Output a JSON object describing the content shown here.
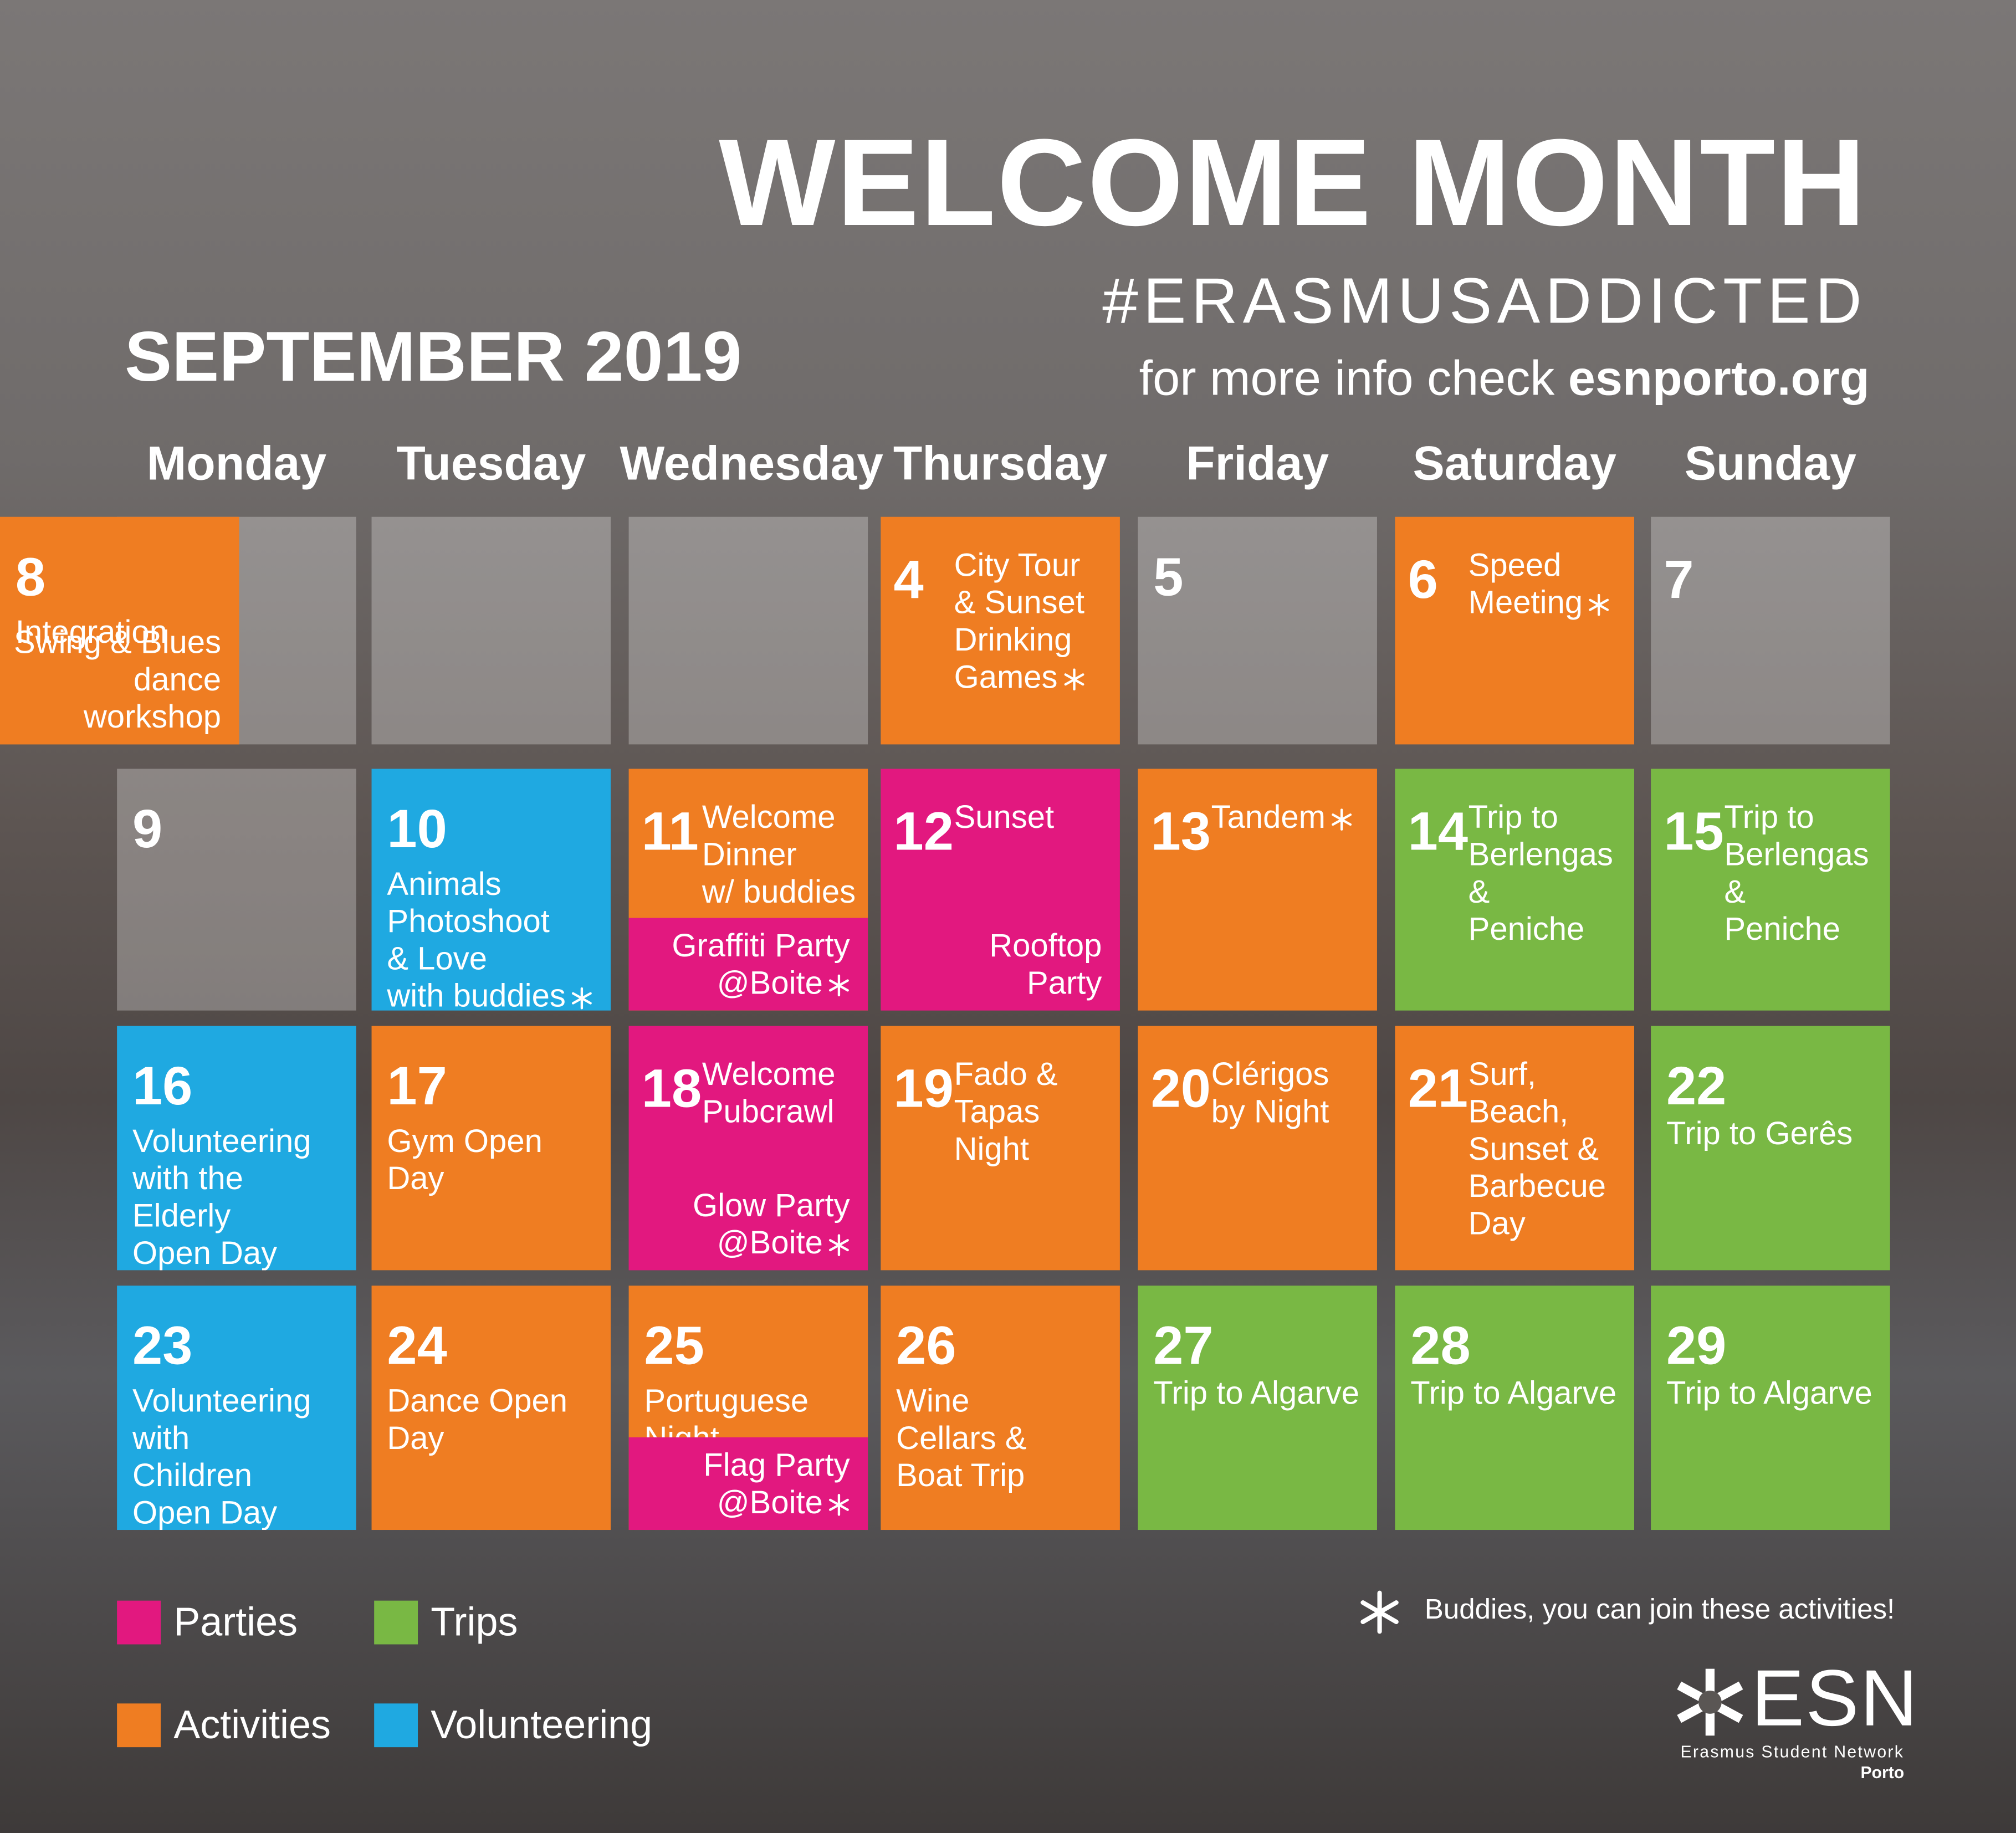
{
  "header": {
    "title": "WELCOME MONTH",
    "hashtag": "#ERASMUSADDICTED",
    "info": "for more info check ",
    "site": "esnporto.org",
    "month": "SEPTEMBER 2019"
  },
  "weekdays": [
    "Monday",
    "Tuesday",
    "Wednesday",
    "Thursday",
    "Friday",
    "Saturday",
    "Sunday"
  ],
  "weeks": [
    [
      null,
      null,
      null,
      {
        "day": 4,
        "events": [
          {
            "text": "City Tour\n& Sunset\nDrinking\nGames",
            "color": "#ef7d22",
            "buddies": true
          }
        ]
      },
      {
        "day": 5,
        "events": []
      },
      {
        "day": 6,
        "events": [
          {
            "text": "Speed\nMeeting",
            "color": "#ef7d22",
            "buddies": true
          }
        ]
      },
      {
        "day": 7,
        "events": []
      },
      {
        "day": 8,
        "events": [
          {
            "text": "Integration\nPicnic",
            "color": "#ef7d22",
            "buddies": false
          },
          {
            "text": "Swing & Blues\ndance workshop",
            "color": "#ef7d22",
            "buddies": false
          }
        ]
      }
    ],
    [
      {
        "day": 9,
        "events": []
      },
      {
        "day": 10,
        "events": [
          {
            "text": "Animals\nPhotoshoot\n& Love\nwith buddies",
            "color": "#1fa9e1",
            "buddies": true
          }
        ]
      },
      {
        "day": 11,
        "events": [
          {
            "text": "Welcome\nDinner\nw/ buddies",
            "color": "#ef7d22",
            "buddies": true
          },
          {
            "text": "Graffiti Party\n@Boite",
            "color": "#e2187f",
            "buddies": true
          }
        ]
      },
      {
        "day": 12,
        "events": [
          {
            "text": "Sunset",
            "color": "#e2187f",
            "buddies": false
          },
          {
            "text": "Rooftop\nParty",
            "color": "#e2187f",
            "buddies": false
          }
        ]
      },
      {
        "day": 13,
        "events": [
          {
            "text": "Tandem",
            "color": "#ef7d22",
            "buddies": true
          }
        ]
      },
      {
        "day": 14,
        "events": [
          {
            "text": "Trip to\nBerlengas\n&\nPeniche",
            "color": "#79b844",
            "buddies": false
          }
        ]
      },
      {
        "day": 15,
        "events": [
          {
            "text": "Trip to\nBerlengas\n&\nPeniche",
            "color": "#79b844",
            "buddies": false
          }
        ]
      }
    ],
    [
      {
        "day": 16,
        "events": [
          {
            "text": "Volunteering\nwith the\nElderly\nOpen Day",
            "color": "#1fa9e1",
            "buddies": false
          }
        ]
      },
      {
        "day": 17,
        "events": [
          {
            "text": "Gym Open\nDay",
            "color": "#ef7d22",
            "buddies": false
          }
        ]
      },
      {
        "day": 18,
        "events": [
          {
            "text": "Welcome\nPubcrawl",
            "color": "#e2187f",
            "buddies": false
          },
          {
            "text": "Glow Party\n@Boite",
            "color": "#e2187f",
            "buddies": true
          }
        ]
      },
      {
        "day": 19,
        "events": [
          {
            "text": "Fado &\nTapas\nNight",
            "color": "#ef7d22",
            "buddies": false
          }
        ]
      },
      {
        "day": 20,
        "events": [
          {
            "text": "Clérigos\nby Night",
            "color": "#ef7d22",
            "buddies": false
          }
        ]
      },
      {
        "day": 21,
        "events": [
          {
            "text": "Surf,\nBeach,\nSunset &\nBarbecue\nDay",
            "color": "#ef7d22",
            "buddies": false
          }
        ]
      },
      {
        "day": 22,
        "events": [
          {
            "text": "Trip to Gerês",
            "color": "#79b844",
            "buddies": false
          }
        ]
      }
    ],
    [
      {
        "day": 23,
        "events": [
          {
            "text": "Volunteering\nwith\nChildren\nOpen Day",
            "color": "#1fa9e1",
            "buddies": false
          }
        ]
      },
      {
        "day": 24,
        "events": [
          {
            "text": "Dance Open\nDay",
            "color": "#ef7d22",
            "buddies": false
          }
        ]
      },
      {
        "day": 25,
        "events": [
          {
            "text": "Portuguese\nNight",
            "color": "#ef7d22",
            "buddies": false
          },
          {
            "text": "Flag Party\n@Boite",
            "color": "#e2187f",
            "buddies": true
          }
        ]
      },
      {
        "day": 26,
        "events": [
          {
            "text": "Wine\nCellars &\nBoat Trip",
            "color": "#ef7d22",
            "buddies": false
          }
        ]
      },
      {
        "day": 27,
        "events": [
          {
            "text": "Trip to Algarve",
            "color": "#79b844",
            "buddies": false
          }
        ]
      },
      {
        "day": 28,
        "events": [
          {
            "text": "Trip to Algarve",
            "color": "#79b844",
            "buddies": false
          }
        ]
      },
      {
        "day": 29,
        "events": [
          {
            "text": "Trip to Algarve",
            "color": "#79b844",
            "buddies": false
          }
        ]
      }
    ]
  ],
  "legend": [
    {
      "label": "Parties",
      "color": "#e2187f"
    },
    {
      "label": "Trips",
      "color": "#79b844"
    },
    {
      "label": "Activities",
      "color": "#ef7d22"
    },
    {
      "label": "Volunteering",
      "color": "#1fa9e1"
    }
  ],
  "note": "Buddies, you can join these activities!",
  "logo": {
    "name": "ESN",
    "full": "Erasmus Student Network",
    "city": "Porto"
  }
}
